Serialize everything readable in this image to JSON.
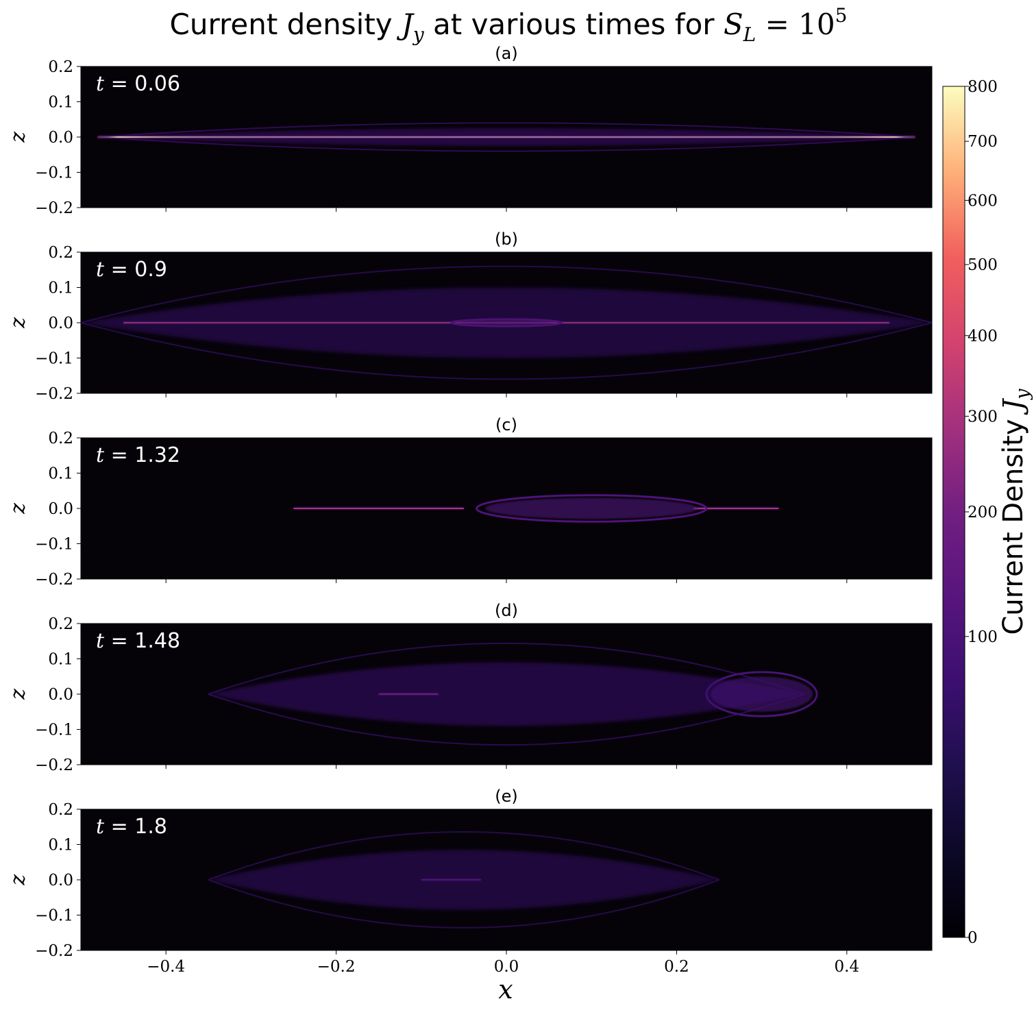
{
  "chart_data": {
    "type": "heatmap",
    "title": {
      "prefix": "Current density ",
      "var": "J",
      "var_sub": "y",
      "middle": " at various times for ",
      "param": "S",
      "param_sub": "L",
      "equals": " = 10",
      "exponent": "5"
    },
    "xlabel": "x",
    "ylabel": "z",
    "xlim": [
      -0.5,
      0.5
    ],
    "ylim": [
      -0.2,
      0.2
    ],
    "xticks": [
      -0.4,
      -0.2,
      0.0,
      0.2,
      0.4
    ],
    "xtick_labels": [
      "−0.4",
      "−0.2",
      "0.0",
      "0.2",
      "0.4"
    ],
    "yticks": [
      0.2,
      0.1,
      0.0,
      -0.1,
      -0.2
    ],
    "ytick_labels": [
      "0.2",
      "0.1",
      "0.0",
      "−0.1",
      "−0.2"
    ],
    "colormap": "magma",
    "colorbar": {
      "label_text": "Current Density ",
      "label_var": "J",
      "label_sub": "y",
      "range": [
        0,
        800
      ],
      "ticks": [
        0,
        100,
        200,
        300,
        400,
        500,
        600,
        700,
        800
      ],
      "tick_labels": [
        "0",
        "100",
        "200",
        "300",
        "400",
        "500",
        "600",
        "700",
        "800"
      ],
      "scale": "power-law"
    },
    "background_color": "#050308",
    "panels": [
      {
        "label": "(a)",
        "t_var": "t",
        "t_text": " = 0.06",
        "t": 0.06,
        "features": [
          {
            "kind": "sheet",
            "x0": -0.48,
            "x1": 0.48,
            "z": 0.0,
            "thickness": 0.003,
            "value": 800
          },
          {
            "kind": "fan",
            "x0": -0.48,
            "x1": 0.48,
            "width": 0.05,
            "value": 80
          }
        ]
      },
      {
        "label": "(b)",
        "t_var": "t",
        "t_text": " = 0.9",
        "t": 0.9,
        "features": [
          {
            "kind": "sheet",
            "x0": -0.45,
            "x1": 0.45,
            "z": 0.0,
            "thickness": 0.003,
            "value": 500
          },
          {
            "kind": "island",
            "xc": 0.0,
            "zc": 0.0,
            "rx": 0.06,
            "rz": 0.008,
            "value": 160
          },
          {
            "kind": "fan",
            "x0": -0.5,
            "x1": 0.5,
            "width": 0.2,
            "value": 60
          }
        ]
      },
      {
        "label": "(c)",
        "t_var": "t",
        "t_text": " = 1.32",
        "t": 1.32,
        "features": [
          {
            "kind": "sheet",
            "x0": -0.25,
            "x1": -0.05,
            "z": 0.0,
            "thickness": 0.003,
            "value": 300
          },
          {
            "kind": "sheet",
            "x0": 0.22,
            "x1": 0.32,
            "z": 0.0,
            "thickness": 0.003,
            "value": 300
          },
          {
            "kind": "island",
            "xc": 0.1,
            "zc": 0.0,
            "rx": 0.125,
            "rz": 0.03,
            "value": 110
          }
        ]
      },
      {
        "label": "(d)",
        "t_var": "t",
        "t_text": " = 1.48",
        "t": 1.48,
        "features": [
          {
            "kind": "sheet",
            "x0": -0.15,
            "x1": -0.08,
            "z": 0.0,
            "thickness": 0.003,
            "value": 300
          },
          {
            "kind": "island",
            "xc": 0.3,
            "zc": 0.0,
            "rx": 0.06,
            "rz": 0.05,
            "value": 100
          },
          {
            "kind": "fan",
            "x0": -0.35,
            "x1": 0.35,
            "width": 0.18,
            "value": 70
          }
        ]
      },
      {
        "label": "(e)",
        "t_var": "t",
        "t_text": " = 1.8",
        "t": 1.8,
        "features": [
          {
            "kind": "sheet",
            "x0": -0.1,
            "x1": -0.03,
            "z": 0.0,
            "thickness": 0.003,
            "value": 200
          },
          {
            "kind": "fan",
            "x0": -0.35,
            "x1": 0.25,
            "width": 0.17,
            "value": 60
          }
        ]
      }
    ]
  }
}
